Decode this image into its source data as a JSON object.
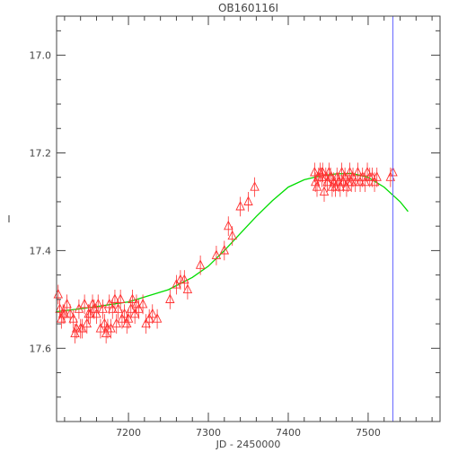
{
  "chart_data": {
    "type": "scatter",
    "title": "OB160116I",
    "xlabel": "JD - 2450000",
    "ylabel": "I",
    "xlim": [
      7110,
      7590
    ],
    "ylim": [
      17.75,
      16.92
    ],
    "y_inverted": true,
    "x_ticks": [
      7200,
      7300,
      7400,
      7500
    ],
    "x_tick_labels": [
      "7200",
      "7300",
      "7400",
      "7500"
    ],
    "y_ticks": [
      17.0,
      17.2,
      17.4,
      17.6
    ],
    "y_tick_labels": [
      "17.0",
      "17.2",
      "17.4",
      "17.6"
    ],
    "grid": false,
    "legend": "none",
    "colors": {
      "points": "#ff3030",
      "model": "#00dd00",
      "marker_line": "#6666ff",
      "axes": "#444444"
    },
    "vertical_line_x": 7531,
    "series": [
      {
        "kind": "points_with_errorbars",
        "marker": "triangle",
        "points": [
          [
            7112,
            17.49,
            0.02
          ],
          [
            7114,
            17.52,
            0.02
          ],
          [
            7116,
            17.54,
            0.02
          ],
          [
            7118,
            17.53,
            0.02
          ],
          [
            7120,
            17.53,
            0.02
          ],
          [
            7123,
            17.51,
            0.02
          ],
          [
            7127,
            17.53,
            0.02
          ],
          [
            7131,
            17.54,
            0.02
          ],
          [
            7133,
            17.57,
            0.02
          ],
          [
            7135,
            17.56,
            0.02
          ],
          [
            7138,
            17.52,
            0.02
          ],
          [
            7140,
            17.56,
            0.02
          ],
          [
            7142,
            17.56,
            0.02
          ],
          [
            7145,
            17.51,
            0.02
          ],
          [
            7148,
            17.55,
            0.02
          ],
          [
            7150,
            17.53,
            0.02
          ],
          [
            7152,
            17.53,
            0.02
          ],
          [
            7155,
            17.51,
            0.02
          ],
          [
            7157,
            17.52,
            0.02
          ],
          [
            7160,
            17.53,
            0.02
          ],
          [
            7162,
            17.51,
            0.02
          ],
          [
            7165,
            17.56,
            0.02
          ],
          [
            7168,
            17.52,
            0.02
          ],
          [
            7170,
            17.55,
            0.02
          ],
          [
            7172,
            17.57,
            0.02
          ],
          [
            7174,
            17.56,
            0.02
          ],
          [
            7176,
            17.51,
            0.02
          ],
          [
            7178,
            17.56,
            0.02
          ],
          [
            7180,
            17.52,
            0.02
          ],
          [
            7183,
            17.5,
            0.02
          ],
          [
            7185,
            17.55,
            0.02
          ],
          [
            7187,
            17.52,
            0.02
          ],
          [
            7190,
            17.5,
            0.02
          ],
          [
            7192,
            17.54,
            0.02
          ],
          [
            7195,
            17.53,
            0.02
          ],
          [
            7198,
            17.55,
            0.02
          ],
          [
            7200,
            17.54,
            0.02
          ],
          [
            7203,
            17.52,
            0.02
          ],
          [
            7205,
            17.5,
            0.02
          ],
          [
            7208,
            17.53,
            0.02
          ],
          [
            7210,
            17.51,
            0.02
          ],
          [
            7213,
            17.52,
            0.02
          ],
          [
            7218,
            17.51,
            0.02
          ],
          [
            7222,
            17.55,
            0.02
          ],
          [
            7226,
            17.54,
            0.02
          ],
          [
            7230,
            17.53,
            0.02
          ],
          [
            7236,
            17.54,
            0.02
          ],
          [
            7252,
            17.5,
            0.02
          ],
          [
            7260,
            17.47,
            0.02
          ],
          [
            7265,
            17.46,
            0.02
          ],
          [
            7270,
            17.46,
            0.02
          ],
          [
            7274,
            17.48,
            0.02
          ],
          [
            7290,
            17.43,
            0.02
          ],
          [
            7310,
            17.41,
            0.02
          ],
          [
            7320,
            17.4,
            0.02
          ],
          [
            7325,
            17.35,
            0.02
          ],
          [
            7330,
            17.37,
            0.02
          ],
          [
            7340,
            17.31,
            0.02
          ],
          [
            7350,
            17.3,
            0.02
          ],
          [
            7358,
            17.27,
            0.02
          ],
          [
            7433,
            17.24,
            0.02
          ],
          [
            7434,
            17.26,
            0.02
          ],
          [
            7436,
            17.27,
            0.02
          ],
          [
            7438,
            17.25,
            0.02
          ],
          [
            7440,
            17.24,
            0.02
          ],
          [
            7442,
            17.25,
            0.02
          ],
          [
            7443,
            17.24,
            0.02
          ],
          [
            7445,
            17.28,
            0.02
          ],
          [
            7447,
            17.25,
            0.02
          ],
          [
            7449,
            17.26,
            0.02
          ],
          [
            7451,
            17.24,
            0.02
          ],
          [
            7453,
            17.25,
            0.02
          ],
          [
            7455,
            17.27,
            0.02
          ],
          [
            7457,
            17.26,
            0.02
          ],
          [
            7459,
            17.27,
            0.02
          ],
          [
            7461,
            17.25,
            0.02
          ],
          [
            7463,
            17.26,
            0.02
          ],
          [
            7465,
            17.27,
            0.02
          ],
          [
            7467,
            17.24,
            0.02
          ],
          [
            7469,
            17.26,
            0.02
          ],
          [
            7471,
            17.25,
            0.02
          ],
          [
            7473,
            17.27,
            0.02
          ],
          [
            7475,
            17.26,
            0.02
          ],
          [
            7477,
            17.24,
            0.02
          ],
          [
            7479,
            17.26,
            0.02
          ],
          [
            7481,
            17.25,
            0.02
          ],
          [
            7484,
            17.26,
            0.02
          ],
          [
            7487,
            17.24,
            0.02
          ],
          [
            7490,
            17.26,
            0.02
          ],
          [
            7493,
            17.25,
            0.02
          ],
          [
            7496,
            17.26,
            0.02
          ],
          [
            7499,
            17.24,
            0.02
          ],
          [
            7502,
            17.25,
            0.02
          ],
          [
            7505,
            17.25,
            0.02
          ],
          [
            7508,
            17.26,
            0.02
          ],
          [
            7511,
            17.25,
            0.02
          ],
          [
            7528,
            17.25,
            0.02
          ],
          [
            7531,
            17.24,
            0.02
          ]
        ]
      },
      {
        "kind": "model_curve",
        "points": [
          [
            7110,
            17.525
          ],
          [
            7150,
            17.517
          ],
          [
            7200,
            17.505
          ],
          [
            7250,
            17.48
          ],
          [
            7280,
            17.455
          ],
          [
            7300,
            17.432
          ],
          [
            7320,
            17.4
          ],
          [
            7340,
            17.365
          ],
          [
            7360,
            17.33
          ],
          [
            7380,
            17.298
          ],
          [
            7400,
            17.27
          ],
          [
            7420,
            17.255
          ],
          [
            7440,
            17.247
          ],
          [
            7460,
            17.243
          ],
          [
            7480,
            17.242
          ],
          [
            7500,
            17.25
          ],
          [
            7520,
            17.27
          ],
          [
            7540,
            17.3
          ],
          [
            7550,
            17.32
          ]
        ]
      }
    ]
  }
}
